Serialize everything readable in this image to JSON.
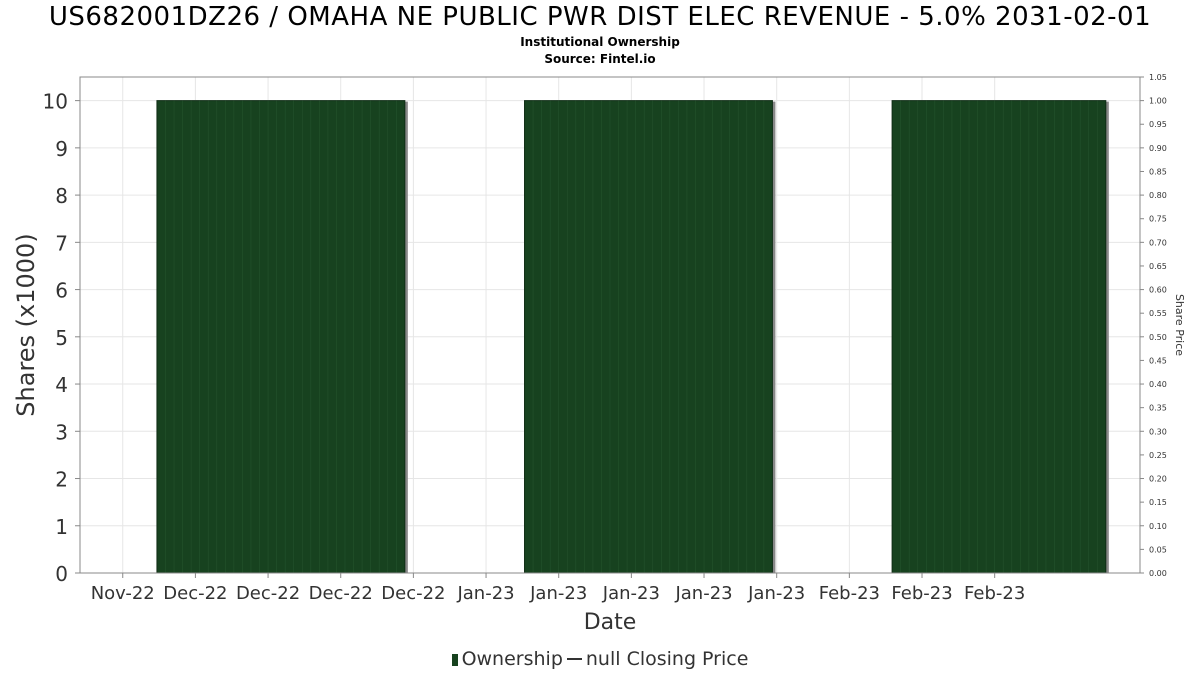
{
  "chart_data": {
    "type": "bar",
    "title": "US682001DZ26 / OMAHA NE PUBLIC PWR DIST ELEC REVENUE - 5.0% 2031-02-01",
    "subtitle_1": "Institutional Ownership",
    "subtitle_2": "Source: Fintel.io",
    "xlabel": "Date",
    "ylabel": "Shares (x1000)",
    "y2label": "Share Price",
    "x_tick_labels": [
      "Nov-22",
      "Dec-22",
      "Dec-22",
      "Dec-22",
      "Dec-22",
      "Jan-23",
      "Jan-23",
      "Jan-23",
      "Jan-23",
      "Jan-23",
      "Feb-23",
      "Feb-23",
      "Feb-23"
    ],
    "ylim": [
      0,
      10.5
    ],
    "y_ticks": [
      "0",
      "1",
      "2",
      "3",
      "4",
      "5",
      "6",
      "7",
      "8",
      "9",
      "10"
    ],
    "y2lim": [
      0,
      1.05
    ],
    "y2_ticks": [
      "0.00",
      "0.05",
      "0.10",
      "0.15",
      "0.20",
      "0.25",
      "0.30",
      "0.35",
      "0.40",
      "0.45",
      "0.50",
      "0.55",
      "0.60",
      "0.65",
      "0.70",
      "0.75",
      "0.80",
      "0.85",
      "0.90",
      "0.95",
      "1.00",
      "1.05"
    ],
    "series": [
      {
        "name": "Ownership",
        "color": "#17421f",
        "periods": [
          {
            "start": "2022-11-24",
            "end": "2022-12-23",
            "value": 10
          },
          {
            "start": "2023-01-06",
            "end": "2023-02-04",
            "value": 10
          },
          {
            "start": "2023-02-18",
            "end": "2023-03-15",
            "value": 10
          }
        ]
      },
      {
        "name": "null Closing Price",
        "color": "#333333",
        "values": []
      }
    ],
    "grid": true,
    "legend_position": "bottom-center"
  },
  "legend": {
    "ownership_label": "Ownership",
    "price_label": "null Closing Price"
  }
}
